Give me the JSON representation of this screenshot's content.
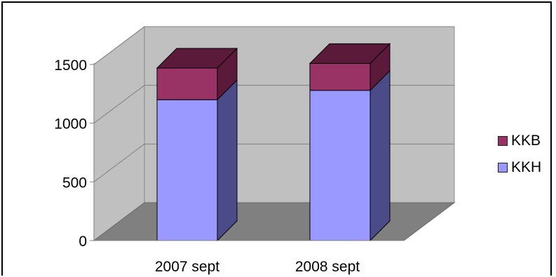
{
  "chart_data": {
    "type": "bar",
    "stacked": true,
    "three_d": true,
    "categories": [
      "2007 sept",
      "2008 sept"
    ],
    "series": [
      {
        "name": "KKH",
        "values": [
          1200,
          1280
        ],
        "color": "#9999ff",
        "side_color": "#4b4b8a"
      },
      {
        "name": "KKB",
        "values": [
          270,
          230
        ],
        "color": "#993366",
        "side_color": "#5c1a3a"
      }
    ],
    "yticks": [
      0,
      500,
      1000,
      1500
    ],
    "ylim": [
      0,
      1500
    ],
    "grid": true,
    "legend_position": "right",
    "legend_order": [
      "KKB",
      "KKH"
    ],
    "wall_color": "#c0c0c0",
    "floor_color": "#808080"
  }
}
